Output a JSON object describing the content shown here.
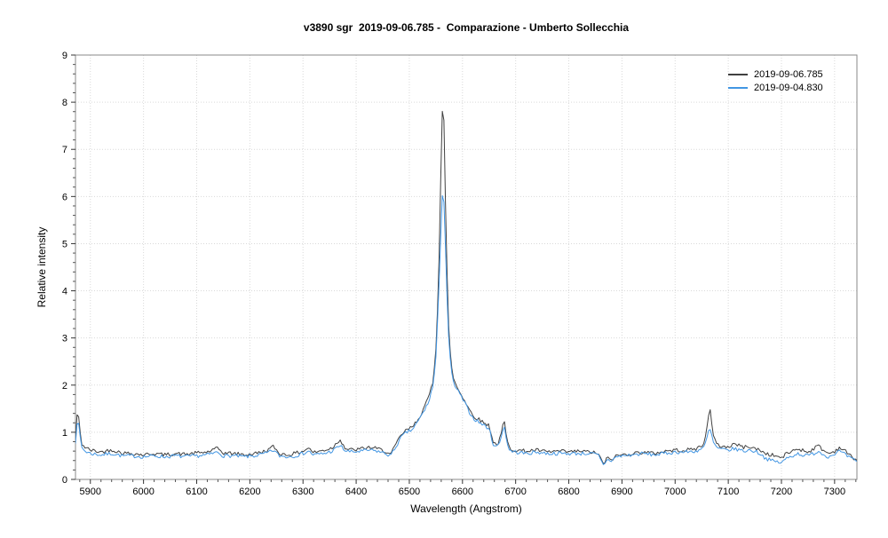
{
  "window": {
    "background": "#ffffff"
  },
  "chart_data": {
    "type": "line",
    "title": "v3890 sgr  2019-09-06.785 -  Comparazione - Umberto Sollecchia",
    "xlabel": "Wavelength (Angstrom)",
    "ylabel": "Relative intensity",
    "xlim": [
      5872,
      7342
    ],
    "ylim": [
      0,
      9
    ],
    "xticks": [
      5900,
      6000,
      6100,
      6200,
      6300,
      6400,
      6500,
      6600,
      6700,
      6800,
      6900,
      7000,
      7100,
      7200,
      7300
    ],
    "yticks": [
      0,
      1,
      2,
      3,
      4,
      5,
      6,
      7,
      8,
      9
    ],
    "grid": true,
    "legend_position": "top-right",
    "notes": "Two optical spectra of nova V3890 Sgr; strong H-alpha emission peak near 6563 A, He I peaks near 5876, 6678, 7065 A, telluric absorption dip near 6870 A",
    "series": [
      {
        "name": "2019-09-06.785",
        "color": "#404040",
        "noise": 0.04,
        "points": [
          [
            5872,
            0.85
          ],
          [
            5876,
            1.55
          ],
          [
            5880,
            1.05
          ],
          [
            5884,
            0.75
          ],
          [
            5890,
            0.68
          ],
          [
            5900,
            0.62
          ],
          [
            5920,
            0.58
          ],
          [
            5940,
            0.63
          ],
          [
            5960,
            0.56
          ],
          [
            5980,
            0.55
          ],
          [
            6000,
            0.52
          ],
          [
            6020,
            0.55
          ],
          [
            6040,
            0.52
          ],
          [
            6060,
            0.55
          ],
          [
            6080,
            0.53
          ],
          [
            6100,
            0.56
          ],
          [
            6120,
            0.58
          ],
          [
            6140,
            0.66
          ],
          [
            6150,
            0.56
          ],
          [
            6170,
            0.55
          ],
          [
            6190,
            0.52
          ],
          [
            6210,
            0.55
          ],
          [
            6230,
            0.6
          ],
          [
            6245,
            0.7
          ],
          [
            6255,
            0.55
          ],
          [
            6270,
            0.52
          ],
          [
            6285,
            0.55
          ],
          [
            6300,
            0.6
          ],
          [
            6310,
            0.67
          ],
          [
            6320,
            0.57
          ],
          [
            6340,
            0.62
          ],
          [
            6355,
            0.67
          ],
          [
            6370,
            0.85
          ],
          [
            6380,
            0.65
          ],
          [
            6395,
            0.62
          ],
          [
            6410,
            0.65
          ],
          [
            6425,
            0.68
          ],
          [
            6440,
            0.65
          ],
          [
            6455,
            0.6
          ],
          [
            6465,
            0.52
          ],
          [
            6475,
            0.75
          ],
          [
            6485,
            0.95
          ],
          [
            6495,
            1.05
          ],
          [
            6505,
            1.1
          ],
          [
            6515,
            1.25
          ],
          [
            6525,
            1.45
          ],
          [
            6535,
            1.7
          ],
          [
            6545,
            2.1
          ],
          [
            6550,
            2.8
          ],
          [
            6555,
            4.2
          ],
          [
            6558,
            5.8
          ],
          [
            6561,
            7.5
          ],
          [
            6563,
            8.1
          ],
          [
            6565,
            7.6
          ],
          [
            6568,
            5.8
          ],
          [
            6571,
            4.4
          ],
          [
            6574,
            3.3
          ],
          [
            6578,
            2.5
          ],
          [
            6583,
            2.15
          ],
          [
            6590,
            1.95
          ],
          [
            6598,
            1.8
          ],
          [
            6605,
            1.65
          ],
          [
            6612,
            1.5
          ],
          [
            6620,
            1.35
          ],
          [
            6630,
            1.28
          ],
          [
            6640,
            1.2
          ],
          [
            6650,
            1.15
          ],
          [
            6658,
            0.8
          ],
          [
            6665,
            0.72
          ],
          [
            6672,
            0.9
          ],
          [
            6678,
            1.28
          ],
          [
            6684,
            0.8
          ],
          [
            6690,
            0.65
          ],
          [
            6700,
            0.62
          ],
          [
            6720,
            0.6
          ],
          [
            6740,
            0.62
          ],
          [
            6760,
            0.58
          ],
          [
            6780,
            0.6
          ],
          [
            6800,
            0.58
          ],
          [
            6820,
            0.6
          ],
          [
            6840,
            0.58
          ],
          [
            6855,
            0.55
          ],
          [
            6865,
            0.32
          ],
          [
            6872,
            0.45
          ],
          [
            6880,
            0.42
          ],
          [
            6890,
            0.5
          ],
          [
            6900,
            0.52
          ],
          [
            6920,
            0.55
          ],
          [
            6940,
            0.58
          ],
          [
            6960,
            0.55
          ],
          [
            6980,
            0.6
          ],
          [
            7000,
            0.62
          ],
          [
            7020,
            0.62
          ],
          [
            7040,
            0.65
          ],
          [
            7055,
            0.75
          ],
          [
            7065,
            1.55
          ],
          [
            7072,
            0.9
          ],
          [
            7080,
            0.72
          ],
          [
            7090,
            0.7
          ],
          [
            7100,
            0.68
          ],
          [
            7110,
            0.76
          ],
          [
            7120,
            0.72
          ],
          [
            7130,
            0.68
          ],
          [
            7140,
            0.7
          ],
          [
            7150,
            0.65
          ],
          [
            7160,
            0.62
          ],
          [
            7170,
            0.55
          ],
          [
            7180,
            0.52
          ],
          [
            7190,
            0.5
          ],
          [
            7200,
            0.45
          ],
          [
            7210,
            0.55
          ],
          [
            7220,
            0.6
          ],
          [
            7230,
            0.65
          ],
          [
            7240,
            0.62
          ],
          [
            7250,
            0.58
          ],
          [
            7260,
            0.65
          ],
          [
            7270,
            0.72
          ],
          [
            7280,
            0.6
          ],
          [
            7290,
            0.55
          ],
          [
            7300,
            0.6
          ],
          [
            7310,
            0.68
          ],
          [
            7320,
            0.6
          ],
          [
            7330,
            0.5
          ],
          [
            7340,
            0.42
          ]
        ]
      },
      {
        "name": "2019-09-04.830",
        "color": "#4296e3",
        "noise": 0.04,
        "points": [
          [
            5872,
            0.8
          ],
          [
            5876,
            1.35
          ],
          [
            5880,
            0.95
          ],
          [
            5884,
            0.68
          ],
          [
            5890,
            0.6
          ],
          [
            5900,
            0.55
          ],
          [
            5920,
            0.52
          ],
          [
            5940,
            0.55
          ],
          [
            5960,
            0.5
          ],
          [
            5980,
            0.5
          ],
          [
            6000,
            0.48
          ],
          [
            6020,
            0.5
          ],
          [
            6040,
            0.48
          ],
          [
            6060,
            0.5
          ],
          [
            6080,
            0.48
          ],
          [
            6100,
            0.5
          ],
          [
            6120,
            0.52
          ],
          [
            6140,
            0.58
          ],
          [
            6150,
            0.5
          ],
          [
            6170,
            0.5
          ],
          [
            6190,
            0.48
          ],
          [
            6210,
            0.5
          ],
          [
            6230,
            0.55
          ],
          [
            6245,
            0.62
          ],
          [
            6255,
            0.5
          ],
          [
            6270,
            0.48
          ],
          [
            6285,
            0.5
          ],
          [
            6300,
            0.55
          ],
          [
            6310,
            0.6
          ],
          [
            6320,
            0.52
          ],
          [
            6340,
            0.55
          ],
          [
            6355,
            0.6
          ],
          [
            6370,
            0.72
          ],
          [
            6380,
            0.6
          ],
          [
            6395,
            0.58
          ],
          [
            6410,
            0.6
          ],
          [
            6425,
            0.62
          ],
          [
            6440,
            0.6
          ],
          [
            6455,
            0.55
          ],
          [
            6465,
            0.5
          ],
          [
            6475,
            0.7
          ],
          [
            6485,
            0.9
          ],
          [
            6495,
            1.0
          ],
          [
            6505,
            1.05
          ],
          [
            6515,
            1.2
          ],
          [
            6525,
            1.4
          ],
          [
            6535,
            1.6
          ],
          [
            6545,
            2.0
          ],
          [
            6550,
            2.6
          ],
          [
            6555,
            3.8
          ],
          [
            6558,
            4.8
          ],
          [
            6561,
            5.9
          ],
          [
            6563,
            6.2
          ],
          [
            6565,
            5.9
          ],
          [
            6568,
            4.9
          ],
          [
            6571,
            3.9
          ],
          [
            6574,
            3.0
          ],
          [
            6578,
            2.4
          ],
          [
            6583,
            2.05
          ],
          [
            6590,
            1.9
          ],
          [
            6598,
            1.75
          ],
          [
            6605,
            1.6
          ],
          [
            6612,
            1.45
          ],
          [
            6620,
            1.3
          ],
          [
            6630,
            1.22
          ],
          [
            6640,
            1.15
          ],
          [
            6650,
            1.08
          ],
          [
            6658,
            0.75
          ],
          [
            6665,
            0.68
          ],
          [
            6672,
            0.85
          ],
          [
            6678,
            1.18
          ],
          [
            6684,
            0.75
          ],
          [
            6690,
            0.6
          ],
          [
            6700,
            0.58
          ],
          [
            6720,
            0.55
          ],
          [
            6740,
            0.58
          ],
          [
            6760,
            0.55
          ],
          [
            6780,
            0.55
          ],
          [
            6800,
            0.55
          ],
          [
            6820,
            0.55
          ],
          [
            6840,
            0.55
          ],
          [
            6855,
            0.52
          ],
          [
            6865,
            0.3
          ],
          [
            6872,
            0.42
          ],
          [
            6880,
            0.4
          ],
          [
            6890,
            0.48
          ],
          [
            6900,
            0.5
          ],
          [
            6920,
            0.52
          ],
          [
            6940,
            0.55
          ],
          [
            6960,
            0.52
          ],
          [
            6980,
            0.55
          ],
          [
            7000,
            0.58
          ],
          [
            7020,
            0.58
          ],
          [
            7040,
            0.6
          ],
          [
            7055,
            0.68
          ],
          [
            7065,
            1.1
          ],
          [
            7072,
            0.78
          ],
          [
            7080,
            0.65
          ],
          [
            7090,
            0.63
          ],
          [
            7100,
            0.62
          ],
          [
            7110,
            0.65
          ],
          [
            7120,
            0.63
          ],
          [
            7130,
            0.6
          ],
          [
            7140,
            0.62
          ],
          [
            7150,
            0.6
          ],
          [
            7160,
            0.55
          ],
          [
            7170,
            0.45
          ],
          [
            7180,
            0.4
          ],
          [
            7190,
            0.38
          ],
          [
            7200,
            0.35
          ],
          [
            7210,
            0.45
          ],
          [
            7220,
            0.5
          ],
          [
            7230,
            0.55
          ],
          [
            7240,
            0.52
          ],
          [
            7250,
            0.5
          ],
          [
            7260,
            0.55
          ],
          [
            7270,
            0.6
          ],
          [
            7280,
            0.52
          ],
          [
            7290,
            0.48
          ],
          [
            7300,
            0.55
          ],
          [
            7310,
            0.6
          ],
          [
            7320,
            0.52
          ],
          [
            7330,
            0.45
          ],
          [
            7340,
            0.38
          ]
        ]
      }
    ]
  }
}
